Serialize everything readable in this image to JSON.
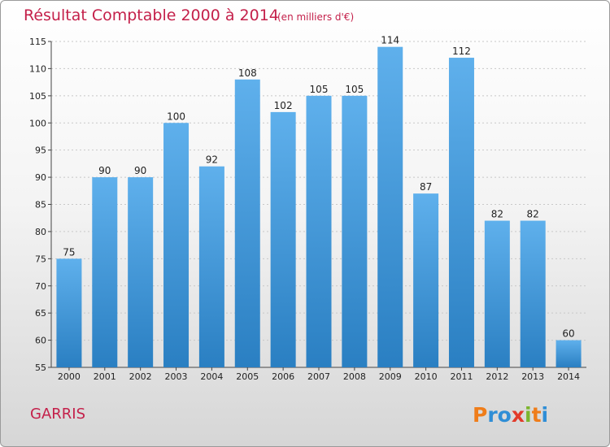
{
  "chart_data": {
    "type": "bar",
    "title": "Résultat Comptable 2000 à 2014",
    "subtitle": "(en milliers d'€)",
    "categories": [
      "2000",
      "2001",
      "2002",
      "2003",
      "2004",
      "2005",
      "2006",
      "2007",
      "2008",
      "2009",
      "2010",
      "2011",
      "2012",
      "2013",
      "2014"
    ],
    "values": [
      75,
      90,
      90,
      100,
      92,
      108,
      102,
      105,
      105,
      114,
      87,
      112,
      82,
      82,
      60
    ],
    "ylim": [
      55,
      115
    ],
    "yticks": [
      55,
      60,
      65,
      70,
      75,
      80,
      85,
      90,
      95,
      100,
      105,
      110,
      115
    ],
    "xlabel": "",
    "ylabel": "",
    "grid": true,
    "bar_color": "#3f98dd"
  },
  "place_name": "GARRIS",
  "logo": {
    "letters": [
      "P",
      "r",
      "o",
      "x",
      "i",
      "t",
      "i"
    ],
    "colors": [
      "#ef7d1a",
      "#2f8ed6",
      "#2f8ed6",
      "#e23a2a",
      "#7cb52e",
      "#ef7d1a",
      "#2f8ed6"
    ]
  }
}
